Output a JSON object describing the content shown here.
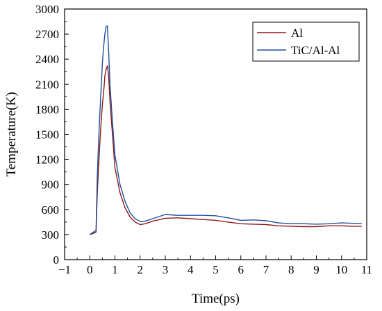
{
  "chart_data": {
    "type": "line",
    "title": "",
    "xlabel": "Time(ps)",
    "ylabel": "Temperature(K)",
    "xlim": [
      -1,
      11
    ],
    "ylim": [
      0,
      3000
    ],
    "x_ticks": [
      -1,
      0,
      1,
      2,
      3,
      4,
      5,
      6,
      7,
      8,
      9,
      10,
      11
    ],
    "x_tick_labels": [
      "−1",
      "0",
      "1",
      "2",
      "3",
      "4",
      "5",
      "6",
      "7",
      "8",
      "9",
      "10",
      "11"
    ],
    "y_ticks": [
      0,
      300,
      600,
      900,
      1200,
      1500,
      1800,
      2100,
      2400,
      2700,
      3000
    ],
    "y_tick_labels": [
      "0",
      "300",
      "600",
      "900",
      "1200",
      "1500",
      "1800",
      "2100",
      "2400",
      "2700",
      "3000"
    ],
    "grid": false,
    "legend_position": "top-right",
    "series": [
      {
        "name": "Al",
        "color": "#8b1a1a",
        "x": [
          0.0,
          0.1,
          0.25,
          0.3,
          0.35,
          0.4,
          0.45,
          0.5,
          0.55,
          0.6,
          0.65,
          0.7,
          0.75,
          0.8,
          0.9,
          1.0,
          1.2,
          1.4,
          1.6,
          1.8,
          2.0,
          2.2,
          2.5,
          3.0,
          3.5,
          4.0,
          4.5,
          5.0,
          5.5,
          6.0,
          6.5,
          7.0,
          7.5,
          8.0,
          8.5,
          9.0,
          9.5,
          10.0,
          10.5,
          10.8
        ],
        "y": [
          300,
          310,
          330,
          800,
          1100,
          1400,
          1650,
          1850,
          2000,
          2200,
          2280,
          2320,
          2200,
          1900,
          1500,
          1100,
          800,
          620,
          510,
          450,
          420,
          430,
          460,
          495,
          500,
          490,
          480,
          470,
          450,
          430,
          425,
          420,
          405,
          400,
          395,
          395,
          405,
          405,
          400,
          400
        ]
      },
      {
        "name": "TiC/Al-Al",
        "color": "#1f4e9c",
        "x": [
          0.0,
          0.1,
          0.25,
          0.3,
          0.35,
          0.4,
          0.45,
          0.5,
          0.55,
          0.6,
          0.65,
          0.7,
          0.75,
          0.8,
          0.9,
          1.0,
          1.2,
          1.4,
          1.6,
          1.8,
          2.0,
          2.2,
          2.5,
          3.0,
          3.5,
          4.0,
          4.5,
          5.0,
          5.5,
          6.0,
          6.5,
          7.0,
          7.5,
          8.0,
          8.5,
          9.0,
          9.5,
          10.0,
          10.5,
          10.8
        ],
        "y": [
          300,
          320,
          350,
          1000,
          1400,
          1750,
          2050,
          2350,
          2550,
          2700,
          2790,
          2800,
          2500,
          2100,
          1650,
          1250,
          900,
          700,
          560,
          490,
          455,
          460,
          490,
          540,
          530,
          530,
          530,
          525,
          500,
          470,
          475,
          465,
          440,
          430,
          430,
          425,
          430,
          440,
          435,
          430
        ]
      }
    ]
  }
}
